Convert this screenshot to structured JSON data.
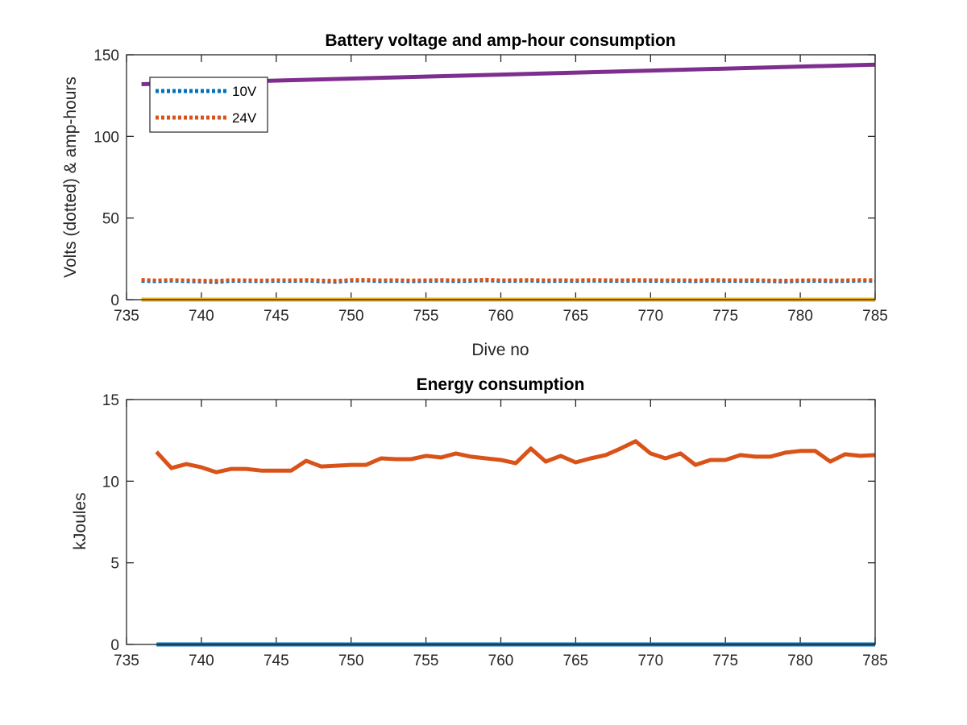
{
  "chart_data": [
    {
      "type": "line",
      "title": "Battery voltage and amp-hour consumption",
      "xlabel": "Dive no",
      "ylabel": "Volts (dotted) & amp-hours",
      "xlim": [
        735,
        785
      ],
      "ylim": [
        0,
        150
      ],
      "xticks": [
        735,
        740,
        745,
        750,
        755,
        760,
        765,
        770,
        775,
        780,
        785
      ],
      "yticks": [
        0,
        50,
        100,
        150
      ],
      "grid": false,
      "legend": "top-left",
      "series": [
        {
          "name": "10V",
          "style": "dotted",
          "color": "#0072BD",
          "x": [
            736,
            737,
            738,
            739,
            740,
            741,
            742,
            743,
            744,
            745,
            746,
            747,
            748,
            749,
            750,
            751,
            752,
            753,
            754,
            755,
            756,
            757,
            758,
            759,
            760,
            761,
            762,
            763,
            764,
            765,
            766,
            767,
            768,
            769,
            770,
            771,
            772,
            773,
            774,
            775,
            776,
            777,
            778,
            779,
            780,
            781,
            782,
            783,
            784,
            785
          ],
          "y": [
            11.5,
            11.2,
            11.6,
            11.3,
            11.1,
            10.8,
            11.5,
            11.4,
            11.3,
            11.5,
            11.4,
            11.6,
            11.2,
            10.9,
            11.6,
            11.7,
            11.3,
            11.5,
            11.2,
            11.4,
            11.6,
            11.3,
            11.5,
            11.8,
            11.4,
            11.5,
            11.6,
            11.3,
            11.5,
            11.4,
            11.6,
            11.5,
            11.4,
            11.6,
            11.5,
            11.4,
            11.5,
            11.3,
            11.6,
            11.5,
            11.4,
            11.5,
            11.3,
            11.1,
            11.4,
            11.5,
            11.3,
            11.4,
            11.6,
            11.5
          ]
        },
        {
          "name": "24V",
          "style": "dotted",
          "color": "#D95319",
          "x": [
            736,
            737,
            738,
            739,
            740,
            741,
            742,
            743,
            744,
            745,
            746,
            747,
            748,
            749,
            750,
            751,
            752,
            753,
            754,
            755,
            756,
            757,
            758,
            759,
            760,
            761,
            762,
            763,
            764,
            765,
            766,
            767,
            768,
            769,
            770,
            771,
            772,
            773,
            774,
            775,
            776,
            777,
            778,
            779,
            780,
            781,
            782,
            783,
            784,
            785
          ],
          "y": [
            12.2,
            11.8,
            12.1,
            11.9,
            11.7,
            11.6,
            12.0,
            11.9,
            11.8,
            12.0,
            11.9,
            12.1,
            11.8,
            11.6,
            12.1,
            12.2,
            11.9,
            12.0,
            11.8,
            11.9,
            12.1,
            11.9,
            12.0,
            12.3,
            11.9,
            12.0,
            12.1,
            11.9,
            12.0,
            11.9,
            12.1,
            12.0,
            11.9,
            12.1,
            12.0,
            11.9,
            12.0,
            11.8,
            12.1,
            12.0,
            11.9,
            12.0,
            11.8,
            11.7,
            11.9,
            12.0,
            11.8,
            11.9,
            12.1,
            12.0
          ]
        },
        {
          "style": "solid",
          "color": "#7E2F8E",
          "x": [
            736,
            785
          ],
          "y": [
            132,
            144
          ]
        },
        {
          "style": "solid",
          "color": "#EDB120",
          "x": [
            736,
            785
          ],
          "y": [
            0,
            0
          ]
        }
      ]
    },
    {
      "type": "line",
      "title": "Energy consumption",
      "xlabel": "",
      "ylabel": "kJoules",
      "xlim": [
        735,
        785
      ],
      "ylim": [
        0,
        15
      ],
      "xticks": [
        735,
        740,
        745,
        750,
        755,
        760,
        765,
        770,
        775,
        780,
        785
      ],
      "yticks": [
        0,
        5,
        10,
        15
      ],
      "grid": false,
      "series": [
        {
          "style": "solid",
          "color": "#0072BD",
          "x": [
            737,
            785
          ],
          "y": [
            0,
            0
          ]
        },
        {
          "style": "solid",
          "color": "#D95319",
          "x": [
            737,
            738,
            739,
            740,
            741,
            742,
            743,
            744,
            745,
            746,
            747,
            748,
            749,
            750,
            751,
            752,
            753,
            754,
            755,
            756,
            757,
            758,
            759,
            760,
            761,
            762,
            763,
            764,
            765,
            766,
            767,
            768,
            769,
            770,
            771,
            772,
            773,
            774,
            775,
            776,
            777,
            778,
            779,
            780,
            781,
            782,
            783,
            784,
            785
          ],
          "y": [
            11.8,
            10.8,
            11.05,
            10.85,
            10.55,
            10.75,
            10.75,
            10.65,
            10.65,
            10.65,
            11.25,
            10.9,
            10.95,
            11.0,
            11.0,
            11.4,
            11.35,
            11.35,
            11.55,
            11.45,
            11.7,
            11.5,
            11.4,
            11.3,
            11.1,
            12.0,
            11.2,
            11.55,
            11.15,
            11.4,
            11.6,
            12.0,
            12.45,
            11.7,
            11.4,
            11.7,
            11.0,
            11.3,
            11.3,
            11.6,
            11.5,
            11.5,
            11.75,
            11.85,
            11.85,
            11.2,
            11.65,
            11.55,
            11.6
          ]
        }
      ]
    }
  ]
}
